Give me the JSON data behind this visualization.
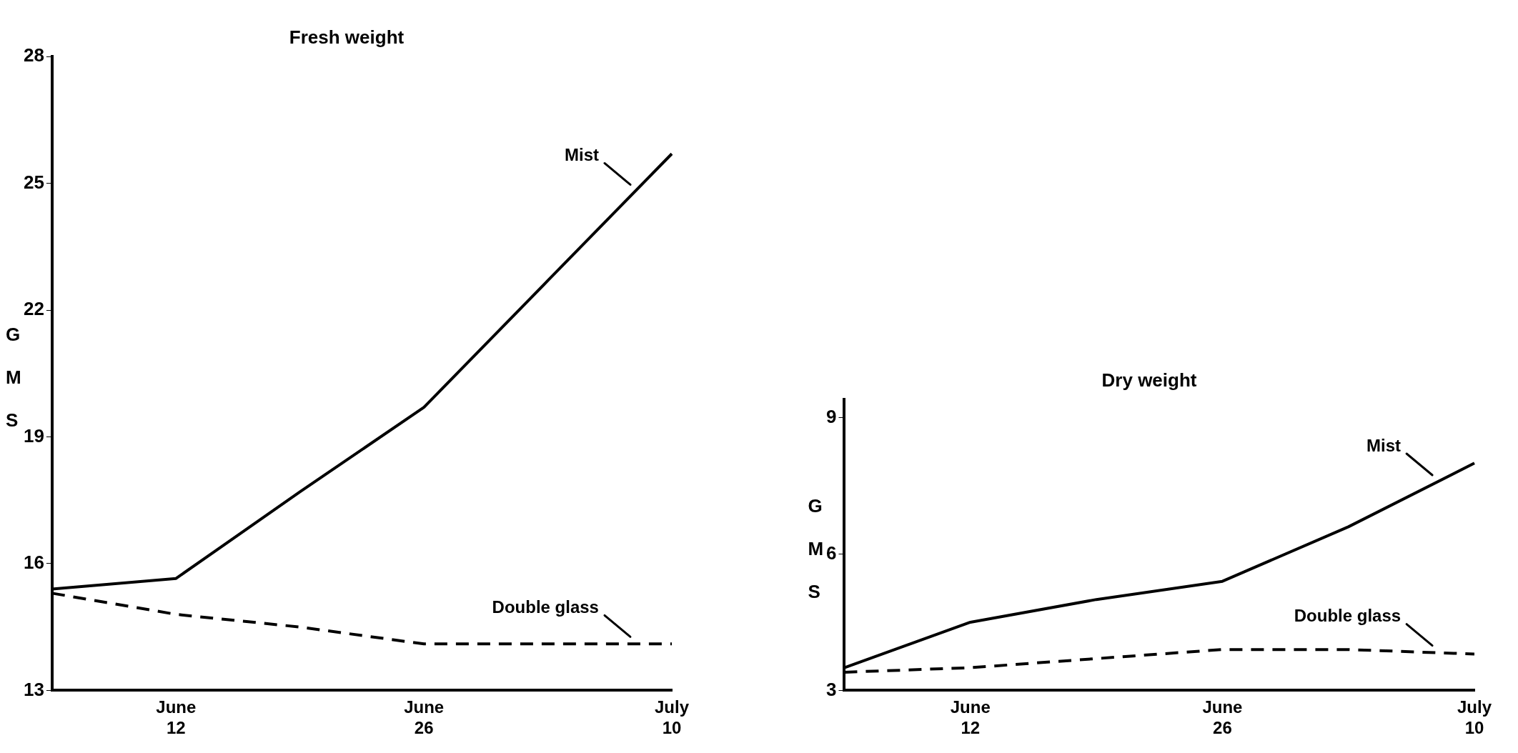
{
  "chart_data": [
    {
      "type": "line",
      "title": "Fresh weight",
      "ylabel": "GMS",
      "categories": [
        null,
        "June 12",
        null,
        "June 26",
        null,
        "July 10"
      ],
      "ylim": [
        13,
        28
      ],
      "yticks": [
        13,
        16,
        19,
        22,
        25,
        28
      ],
      "grid": false,
      "legend": false,
      "marker": "none",
      "series": [
        {
          "name": "Mist",
          "color": "#000000",
          "line_style": "solid",
          "values": [
            15.4,
            15.65,
            17.7,
            19.7,
            22.7,
            25.7
          ]
        },
        {
          "name": "Double glass",
          "color": "#000000",
          "line_style": "dashed",
          "values": [
            15.3,
            14.8,
            14.5,
            14.1,
            14.1,
            14.1
          ]
        }
      ]
    },
    {
      "type": "line",
      "title": "Dry weight",
      "ylabel": "GMS",
      "categories": [
        null,
        "June 12",
        null,
        "June 26",
        null,
        "July 10"
      ],
      "ylim": [
        3,
        9.4
      ],
      "yticks": [
        3,
        6,
        9
      ],
      "grid": false,
      "legend": false,
      "marker": "none",
      "series": [
        {
          "name": "Mist",
          "color": "#000000",
          "line_style": "solid",
          "values": [
            3.5,
            4.5,
            5.0,
            5.4,
            6.6,
            8.0
          ]
        },
        {
          "name": "Double glass",
          "color": "#000000",
          "line_style": "dashed",
          "values": [
            3.4,
            3.5,
            3.7,
            3.9,
            3.9,
            3.8
          ]
        }
      ]
    }
  ]
}
